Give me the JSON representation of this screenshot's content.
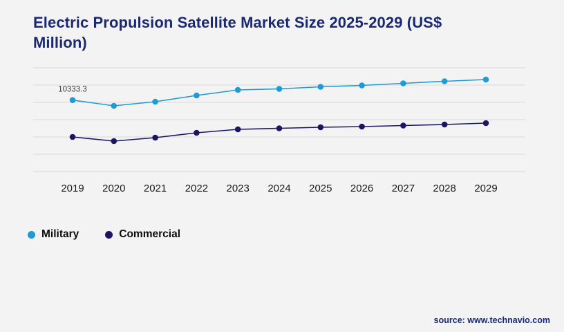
{
  "title": "Electric Propulsion Satellite Market Size 2025-2029 (US$ Million)",
  "source": "source: www.technavio.com",
  "colors": {
    "background": "#f3f3f4",
    "title": "#1b2a70",
    "gridline": "#d9d9d9",
    "axis_text": "#1a1a1a",
    "data_label_text": "#3a3a3a",
    "source": "#1b2a70",
    "military_series": "#1e9bd7",
    "commercial_series": "#1b1663"
  },
  "chart_data": {
    "type": "line",
    "title": "Electric Propulsion Satellite Market Size 2025-2029 (US$ Million)",
    "xlabel": "",
    "ylabel": "",
    "categories": [
      "2019",
      "2020",
      "2021",
      "2022",
      "2023",
      "2024",
      "2025",
      "2026",
      "2027",
      "2028",
      "2029"
    ],
    "series": [
      {
        "name": "Military",
        "color": "#1e9bd7",
        "values": [
          10333.3,
          9500,
          10100,
          11000,
          11800,
          11950,
          12250,
          12450,
          12750,
          13050,
          13300
        ]
      },
      {
        "name": "Commercial",
        "color": "#1b1663",
        "values": [
          5000,
          4400,
          4900,
          5600,
          6100,
          6250,
          6400,
          6500,
          6650,
          6800,
          7000
        ]
      }
    ],
    "data_labels": [
      {
        "series": "Military",
        "category": "2019",
        "text": "10333.3"
      }
    ],
    "ylim": [
      0,
      15000
    ],
    "grid_step": 2500,
    "grid": true,
    "y_axis_labels_visible": false,
    "legend_position": "bottom-left",
    "note": "y-axis has no visible tick labels; values estimated from the 10333.3 data label and gridline spacing"
  }
}
